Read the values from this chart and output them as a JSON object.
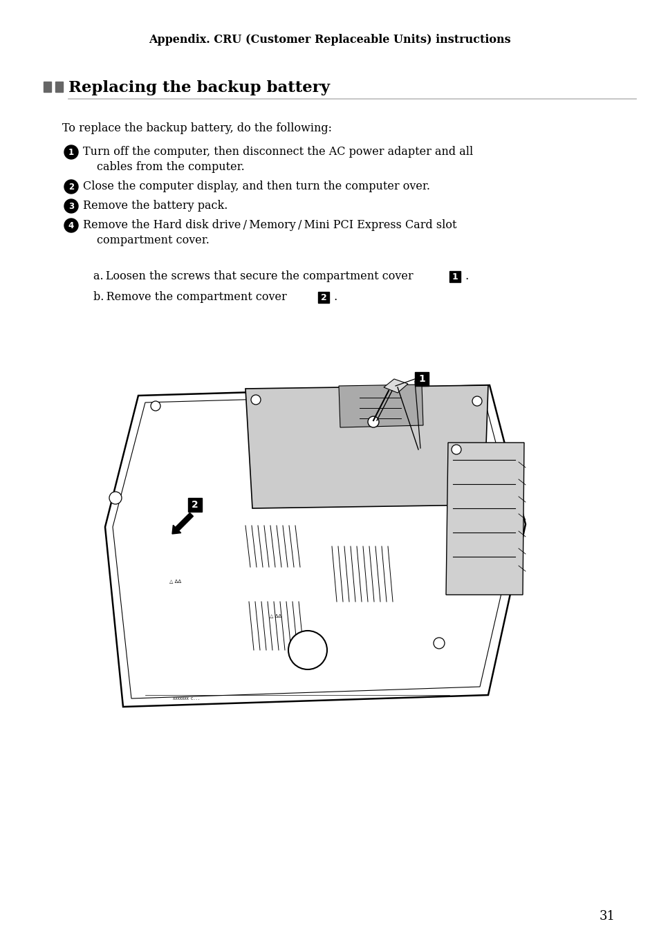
{
  "page_title": "Appendix. CRU (Customer Replaceable Units) instructions",
  "section_title": "Replacing the backup battery",
  "intro_text": "To replace the backup battery, do the following:",
  "step1_line1": "Turn off the computer, then disconnect the AC power adapter and all",
  "step1_line2": "cables from the computer.",
  "step2": "Close the computer display, and then turn the computer over.",
  "step3": "Remove the battery pack.",
  "step4_line1": "Remove the Hard disk drive / Memory / Mini PCI Express Card slot",
  "step4_line2": "compartment cover.",
  "suba_text": "a. Loosen the screws that secure the compartment cover",
  "subb_text": "b. Remove the compartment cover",
  "page_number": "31",
  "bg_color": "#ffffff",
  "text_color": "#000000",
  "gray_color": "#cccccc",
  "dark_gray": "#888888",
  "line_color": "#bbbbbb"
}
